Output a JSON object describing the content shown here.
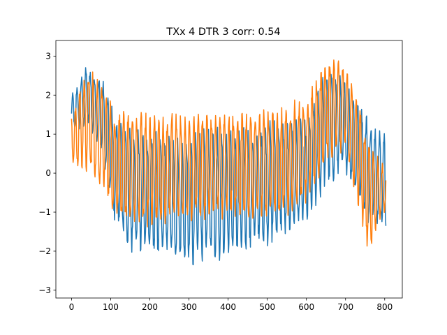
{
  "chart_data": {
    "type": "line",
    "title": "TXx 4 DTR 3 corr: 0.54",
    "xlabel": "",
    "ylabel": "",
    "xlim": [
      -40,
      845
    ],
    "ylim": [
      -3.2,
      3.4
    ],
    "xticks": [
      0,
      100,
      200,
      300,
      400,
      500,
      600,
      700,
      800
    ],
    "yticks": [
      -3,
      -2,
      -1,
      0,
      1,
      2,
      3
    ],
    "grid": false,
    "legend": "none",
    "n_points": 804,
    "series": [
      {
        "color": "#1f77b4",
        "envelope": [
          [
            0,
            1.0,
            2.0
          ],
          [
            40,
            1.2,
            2.8
          ],
          [
            80,
            0.4,
            2.4
          ],
          [
            110,
            -1.4,
            1.6
          ],
          [
            150,
            -2.1,
            1.3
          ],
          [
            250,
            -2.3,
            1.0
          ],
          [
            300,
            -2.5,
            1.0
          ],
          [
            350,
            -2.3,
            1.3
          ],
          [
            450,
            -2.1,
            1.2
          ],
          [
            520,
            -1.8,
            1.4
          ],
          [
            600,
            -1.4,
            1.4
          ],
          [
            650,
            -0.4,
            2.8
          ],
          [
            700,
            0.0,
            2.4
          ],
          [
            760,
            -1.4,
            1.5
          ],
          [
            800,
            -1.4,
            1.2
          ]
        ]
      },
      {
        "color": "#ff7f0e",
        "envelope": [
          [
            0,
            0.2,
            1.5
          ],
          [
            40,
            0.0,
            2.8
          ],
          [
            80,
            -0.5,
            2.4
          ],
          [
            110,
            -1.2,
            1.6
          ],
          [
            150,
            -1.5,
            1.7
          ],
          [
            250,
            -1.4,
            1.6
          ],
          [
            300,
            -1.3,
            1.5
          ],
          [
            350,
            -1.2,
            1.6
          ],
          [
            450,
            -1.2,
            1.6
          ],
          [
            520,
            -1.3,
            1.7
          ],
          [
            600,
            -0.8,
            2.0
          ],
          [
            650,
            0.2,
            3.0
          ],
          [
            700,
            0.5,
            3.0
          ],
          [
            760,
            -2.2,
            1.0
          ],
          [
            800,
            -1.0,
            0.2
          ]
        ]
      }
    ]
  }
}
